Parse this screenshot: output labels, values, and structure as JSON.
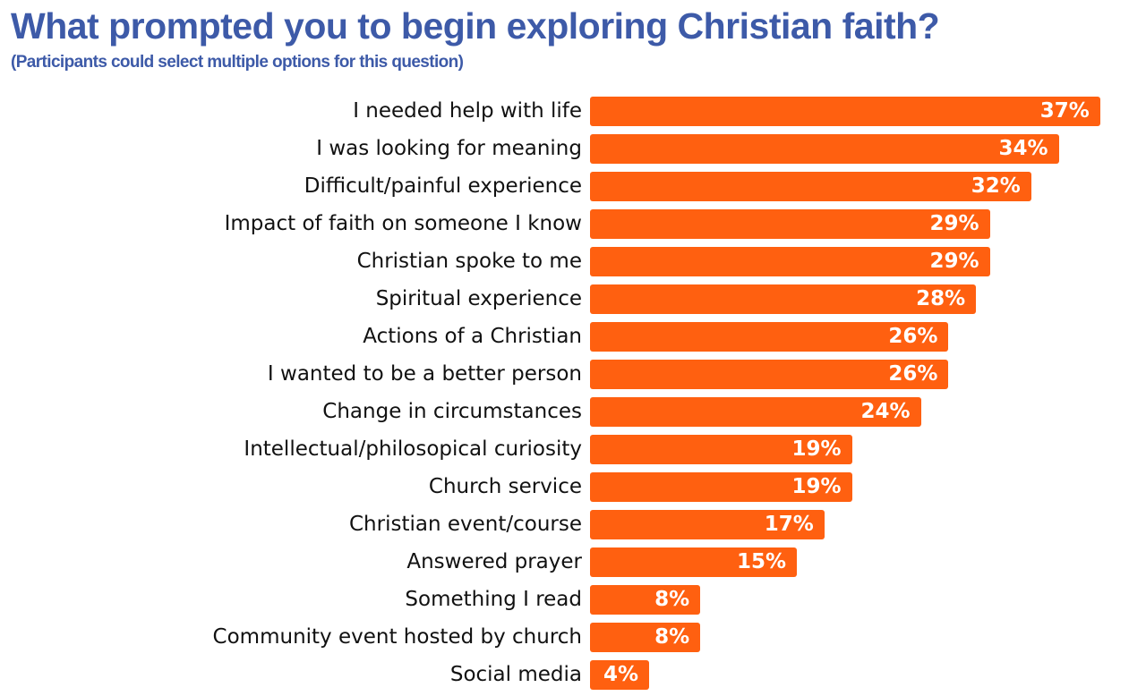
{
  "chart_data": {
    "type": "bar",
    "orientation": "horizontal",
    "title": "What prompted you to begin exploring Christian faith?",
    "subtitle": "(Participants could select multiple options for this question)",
    "categories": [
      "I needed help with life",
      "I was looking for meaning",
      "Difficult/painful experience",
      "Impact of faith on someone I know",
      "Christian spoke to me",
      "Spiritual experience",
      "Actions of a Christian",
      "I wanted to be a better person",
      "Change in circumstances",
      "Intellectual/philosopical curiosity",
      "Church service",
      "Christian event/course",
      "Answered prayer",
      "Something I read",
      "Community event hosted by church",
      "Social media"
    ],
    "values": [
      37,
      34,
      32,
      29,
      29,
      28,
      26,
      26,
      24,
      19,
      19,
      17,
      15,
      8,
      8,
      4
    ],
    "labels": [
      "37%",
      "34%",
      "32%",
      "29%",
      "29%",
      "28%",
      "26%",
      "26%",
      "24%",
      "19%",
      "19%",
      "17%",
      "15%",
      "8%",
      "8%",
      "4%"
    ],
    "unit": "%",
    "grid": false,
    "bar_color": "#ff6010",
    "title_color": "#3d5aa8"
  }
}
